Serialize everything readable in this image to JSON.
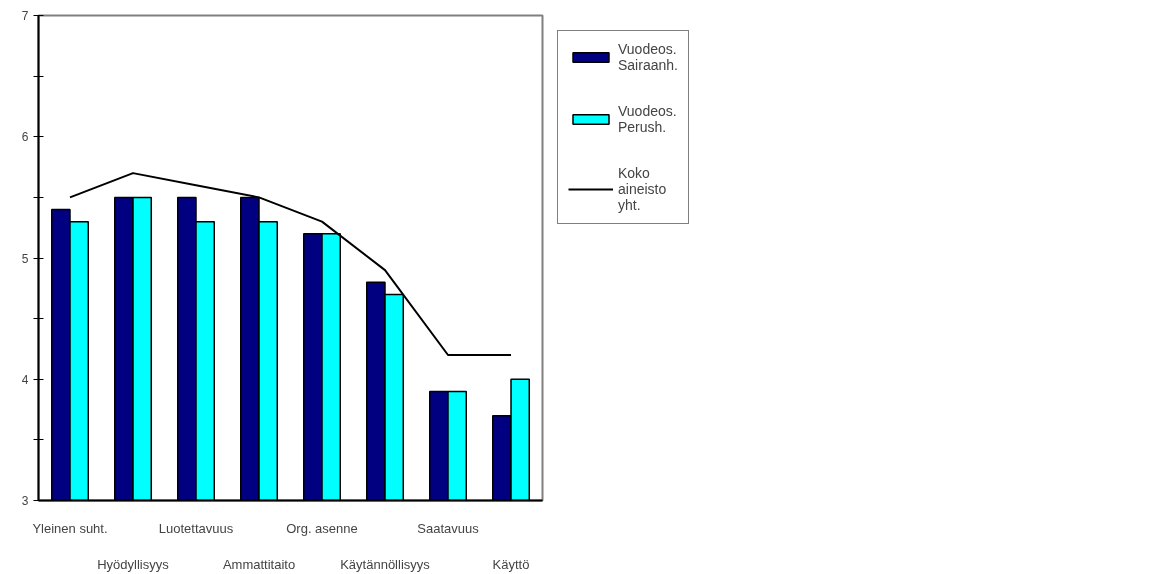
{
  "chart_data": {
    "type": "bar",
    "categories": [
      "Yleinen suht.",
      "Hyödyllisyys",
      "Luotettavuus",
      "Ammattitaito",
      "Org. asenne",
      "Käytännöllisyys",
      "Saatavuus",
      "Käyttö"
    ],
    "series": [
      {
        "name": "Vuodeos. Sairaanh.",
        "color": "#000080",
        "values": [
          5.4,
          5.5,
          5.5,
          5.5,
          5.2,
          4.8,
          3.9,
          3.7
        ]
      },
      {
        "name": "Vuodeos. Perush.",
        "color": "#00ffff",
        "values": [
          5.3,
          5.5,
          5.3,
          5.3,
          5.2,
          4.7,
          3.9,
          4.0
        ]
      },
      {
        "name": "Koko aineisto yht.",
        "type": "line",
        "color": "#000000",
        "values": [
          5.5,
          5.7,
          5.6,
          5.5,
          5.3,
          4.9,
          4.2,
          4.2
        ]
      }
    ],
    "ylim": [
      3,
      7
    ],
    "yticks": [
      3,
      {
        "value": 3.5,
        "label": null
      },
      4,
      {
        "value": 4.5,
        "label": null
      },
      5,
      {
        "value": 5.5,
        "label": null
      },
      6,
      {
        "value": 6.5,
        "label": null
      },
      7
    ],
    "grid": false,
    "legend": "right",
    "line_style": "solid",
    "marker": "none"
  }
}
